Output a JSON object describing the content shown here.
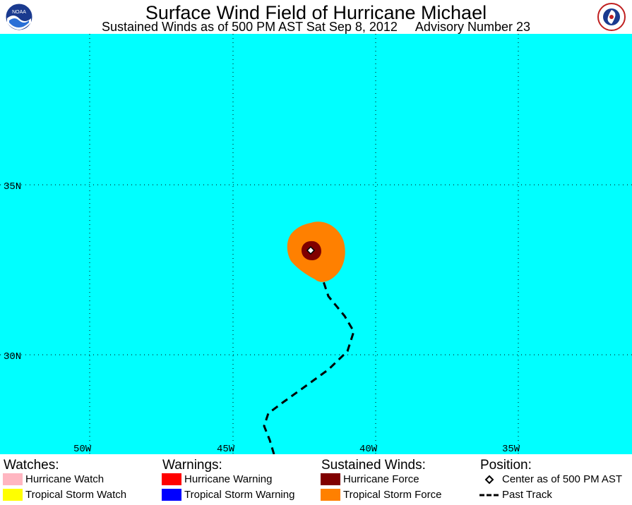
{
  "header": {
    "title": "Surface Wind Field of Hurricane Michael",
    "subtitle_time": "Sustained Winds as of 500 PM AST Sat Sep 8, 2012",
    "subtitle_advisory": "Advisory Number 23",
    "logo_left": "noaa-logo",
    "logo_left_text": "NOAA",
    "logo_right": "nws-logo",
    "logo_right_text": "NATIONAL WEATHER SERVICE"
  },
  "map": {
    "background_color": "#00ffff",
    "lat_labels": [
      "35N",
      "30N"
    ],
    "lon_labels": [
      "50W",
      "45W",
      "40W",
      "35W"
    ],
    "tropical_storm_force_color": "#ff8000",
    "hurricane_force_color": "#800000",
    "storm_center": {
      "lat": 33.0,
      "lon": -42.3
    }
  },
  "legend": {
    "watches": {
      "title": "Watches:",
      "items": [
        {
          "label": "Hurricane Watch",
          "color": "#ffb6c1"
        },
        {
          "label": "Tropical Storm Watch",
          "color": "#ffff00"
        }
      ]
    },
    "warnings": {
      "title": "Warnings:",
      "items": [
        {
          "label": "Hurricane Warning",
          "color": "#ff0000"
        },
        {
          "label": "Tropical Storm Warning",
          "color": "#0000ff"
        }
      ]
    },
    "winds": {
      "title": "Sustained Winds:",
      "items": [
        {
          "label": "Hurricane Force",
          "color": "#800000"
        },
        {
          "label": "Tropical Storm Force",
          "color": "#ff8000"
        }
      ]
    },
    "position": {
      "title": "Position:",
      "items": [
        {
          "label": "Center as of 500 PM AST",
          "icon": "diamond-icon"
        },
        {
          "label": "Past Track",
          "icon": "dashed-line-icon"
        }
      ]
    }
  }
}
